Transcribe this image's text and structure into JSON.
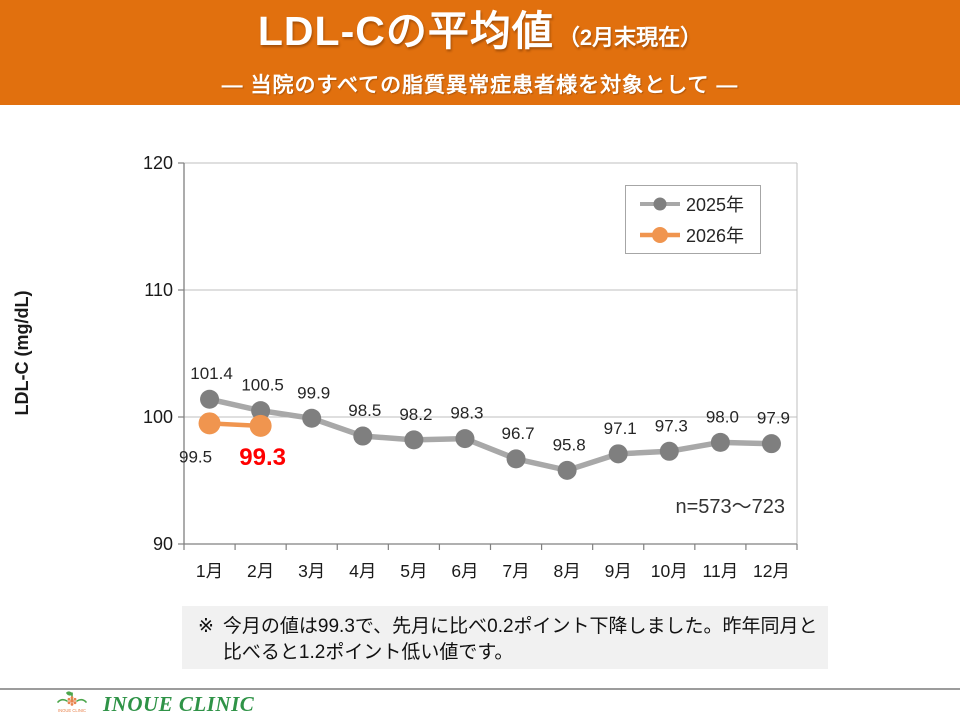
{
  "header": {
    "title": "LDL-Cの平均値",
    "title_suffix": "（2月末現在）",
    "subtitle": "―  当院のすべての脂質異常症患者様を対象として  ―"
  },
  "colors": {
    "header_bg": "#E1700E",
    "grid": "#BFBFBF",
    "axis": "#808080",
    "tick_text": "#1a1a1a",
    "label_text": "#262626",
    "highlight": "#FF0000",
    "note_bg": "#F1F1F1",
    "gray_line": "#A8A8A8",
    "gray_marker": "#7F7F7F",
    "orange": "#F0954F"
  },
  "chart_data": {
    "type": "line",
    "categories": [
      "1月",
      "2月",
      "3月",
      "4月",
      "5月",
      "6月",
      "7月",
      "8月",
      "9月",
      "10月",
      "11月",
      "12月"
    ],
    "series": [
      {
        "name": "2025年",
        "color": "#A8A8A8",
        "marker_color": "#7F7F7F",
        "line_width": 5.5,
        "marker_radius": 9.5,
        "values": [
          101.4,
          100.5,
          99.9,
          98.5,
          98.2,
          98.3,
          96.7,
          95.8,
          97.1,
          97.3,
          98.0,
          97.9
        ]
      },
      {
        "name": "2026年",
        "color": "#F0954F",
        "marker_color": "#F0954F",
        "line_width": 4.5,
        "marker_radius": 11,
        "values": [
          99.5,
          99.3
        ],
        "label_position": "below",
        "labels": [
          {
            "text": "99.5",
            "emphasis": false
          },
          {
            "text": "99.3",
            "emphasis": true
          }
        ]
      }
    ],
    "ylabel": "LDL-C (mg/dL)",
    "ylim": [
      90,
      120
    ],
    "yticks": [
      90,
      100,
      110,
      120
    ],
    "annotation": "n=573～723",
    "legend_position": "top-right",
    "grid": true
  },
  "note": {
    "marker": "※",
    "line1": "今月の値は99.3で、先月に比べ0.2ポイント下降しました。昨年同月と",
    "line2": "比べると1.2ポイント低い値です。"
  },
  "footer": {
    "clinic_name": "INOUE CLINIC",
    "logo_caption": "INOUE CLINIC"
  }
}
